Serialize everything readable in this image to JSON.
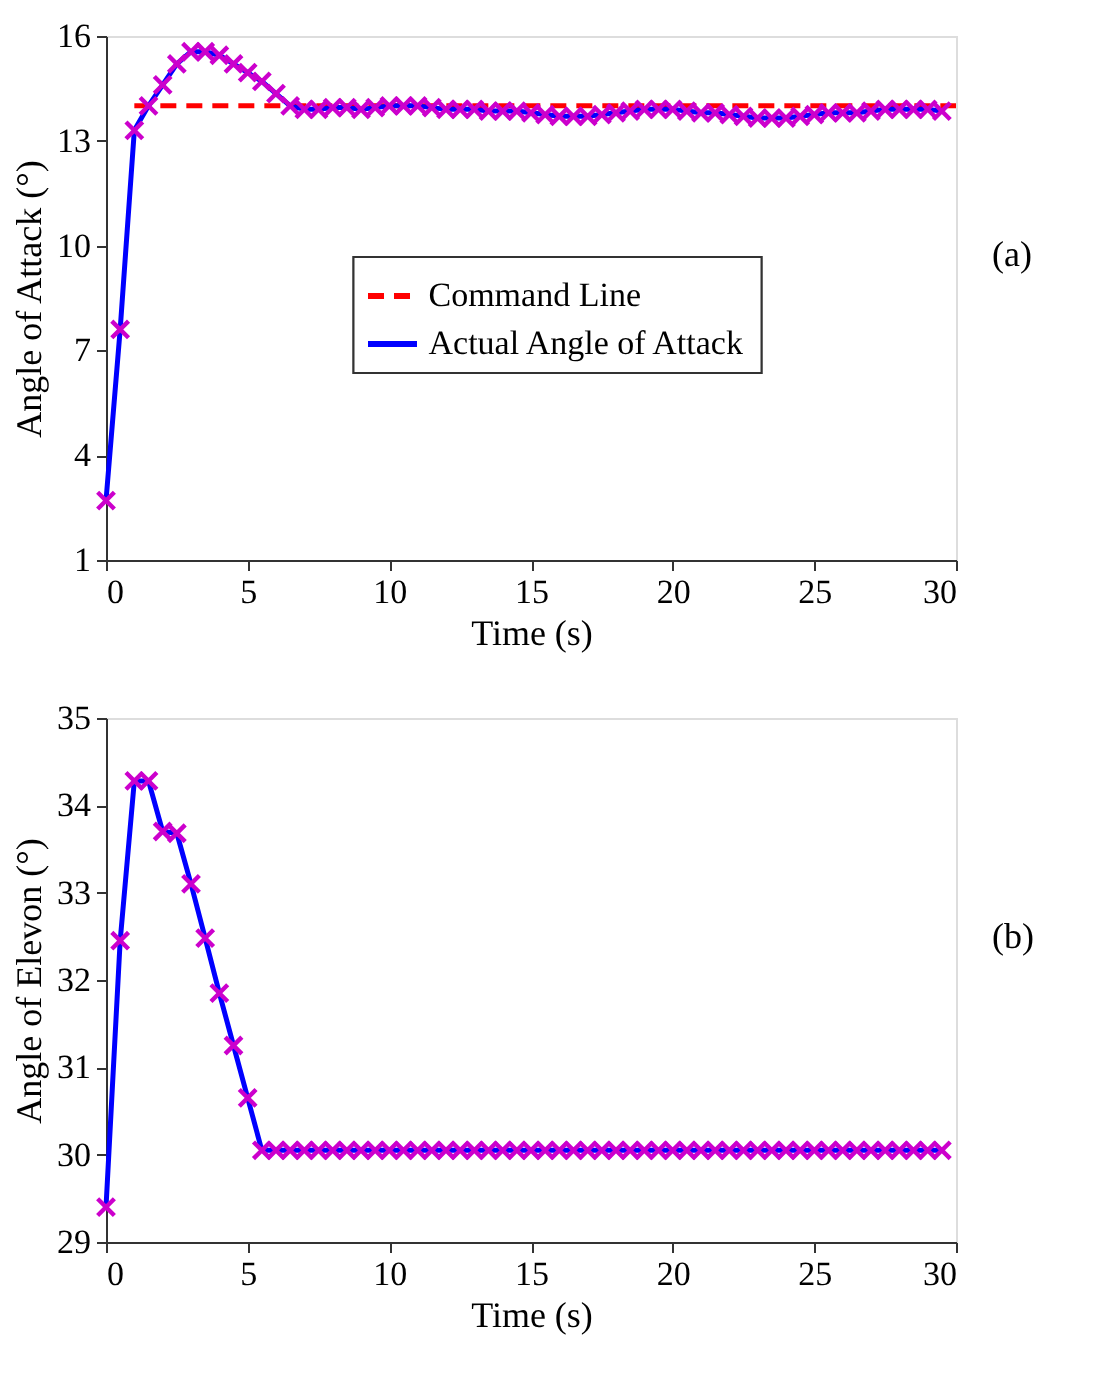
{
  "chart_data": [
    {
      "type": "line",
      "xlabel": "Time (s)",
      "ylabel": "Angle of Attack (°)",
      "xlim": [
        0,
        30
      ],
      "xticks": [
        0,
        5,
        10,
        15,
        20,
        25,
        30
      ],
      "ylim": [
        1,
        16
      ],
      "yticks": [
        1,
        4,
        7,
        10,
        13,
        16
      ],
      "grid": false,
      "legend": "right",
      "annotations": [
        "(a)"
      ],
      "series": [
        {
          "name": "Command Line",
          "color": "#ff0000",
          "line_style": "dashed",
          "marker": "none",
          "x": [
            1,
            30
          ],
          "values": [
            14,
            14
          ]
        },
        {
          "name": "Actual Angle of Attack",
          "color": "#0000ff",
          "line_style": "solid",
          "marker": "cross",
          "x": [
            0,
            0.5,
            1,
            1.5,
            2,
            2.5,
            3,
            3.5,
            4,
            4.5,
            5,
            5.5,
            6,
            6.5,
            7,
            7.5,
            8,
            8.5,
            9,
            9.5,
            10,
            10.5,
            11,
            11.5,
            12,
            12.5,
            13,
            13.5,
            14,
            14.5,
            15,
            15.5,
            16,
            16.5,
            17,
            17.5,
            18,
            18.5,
            19,
            19.5,
            20,
            20.5,
            21,
            21.5,
            22,
            22.5,
            23,
            23.5,
            24,
            24.5,
            25,
            25.5,
            26,
            26.5,
            27,
            27.5,
            28,
            28.5,
            29,
            29.5
          ],
          "values": [
            2.7,
            7.6,
            13.3,
            14.0,
            14.6,
            15.2,
            15.55,
            15.55,
            15.45,
            15.2,
            14.95,
            14.7,
            14.35,
            14.0,
            13.9,
            13.9,
            13.95,
            13.95,
            13.9,
            13.95,
            14.0,
            14.0,
            14.0,
            13.95,
            13.9,
            13.9,
            13.9,
            13.85,
            13.85,
            13.85,
            13.8,
            13.75,
            13.7,
            13.7,
            13.7,
            13.75,
            13.8,
            13.85,
            13.9,
            13.9,
            13.9,
            13.85,
            13.8,
            13.8,
            13.75,
            13.7,
            13.65,
            13.65,
            13.65,
            13.7,
            13.75,
            13.8,
            13.8,
            13.8,
            13.85,
            13.9,
            13.9,
            13.9,
            13.9,
            13.85
          ]
        }
      ]
    },
    {
      "type": "line",
      "xlabel": "Time (s)",
      "ylabel": "Angle of Elevon (°)",
      "xlim": [
        0,
        30
      ],
      "xticks": [
        0,
        5,
        10,
        15,
        20,
        25,
        30
      ],
      "ylim": [
        29,
        35
      ],
      "yticks": [
        29,
        30,
        31,
        32,
        33,
        34,
        35
      ],
      "grid": false,
      "legend": false,
      "annotations": [
        "(b)"
      ],
      "series": [
        {
          "color": "#0000ff",
          "line_style": "solid",
          "marker": "cross",
          "x": [
            0,
            0.5,
            1,
            1.5,
            2,
            2.5,
            3,
            3.5,
            4,
            4.5,
            5,
            5.5,
            6,
            6.5,
            7,
            7.5,
            8,
            8.5,
            9,
            9.5,
            10,
            10.5,
            11,
            11.5,
            12,
            12.5,
            13,
            13.5,
            14,
            14.5,
            15,
            15.5,
            16,
            16.5,
            17,
            17.5,
            18,
            18.5,
            19,
            19.5,
            20,
            20.5,
            21,
            21.5,
            22,
            22.5,
            23,
            23.5,
            24,
            24.5,
            25,
            25.5,
            26,
            26.5,
            27,
            27.5,
            28,
            28.5,
            29,
            29.5
          ],
          "values": [
            29.4,
            32.45,
            34.28,
            34.28,
            33.7,
            33.68,
            33.1,
            32.48,
            31.85,
            31.25,
            30.65,
            30.05,
            30.05,
            30.05,
            30.05,
            30.05,
            30.05,
            30.05,
            30.05,
            30.05,
            30.05,
            30.05,
            30.05,
            30.05,
            30.05,
            30.05,
            30.05,
            30.05,
            30.05,
            30.05,
            30.05,
            30.05,
            30.05,
            30.05,
            30.05,
            30.05,
            30.05,
            30.05,
            30.05,
            30.05,
            30.05,
            30.05,
            30.05,
            30.05,
            30.05,
            30.05,
            30.05,
            30.05,
            30.05,
            30.05,
            30.05,
            30.05,
            30.05,
            30.05,
            30.05,
            30.05,
            30.05,
            30.05,
            30.05,
            30.05
          ]
        }
      ]
    }
  ]
}
